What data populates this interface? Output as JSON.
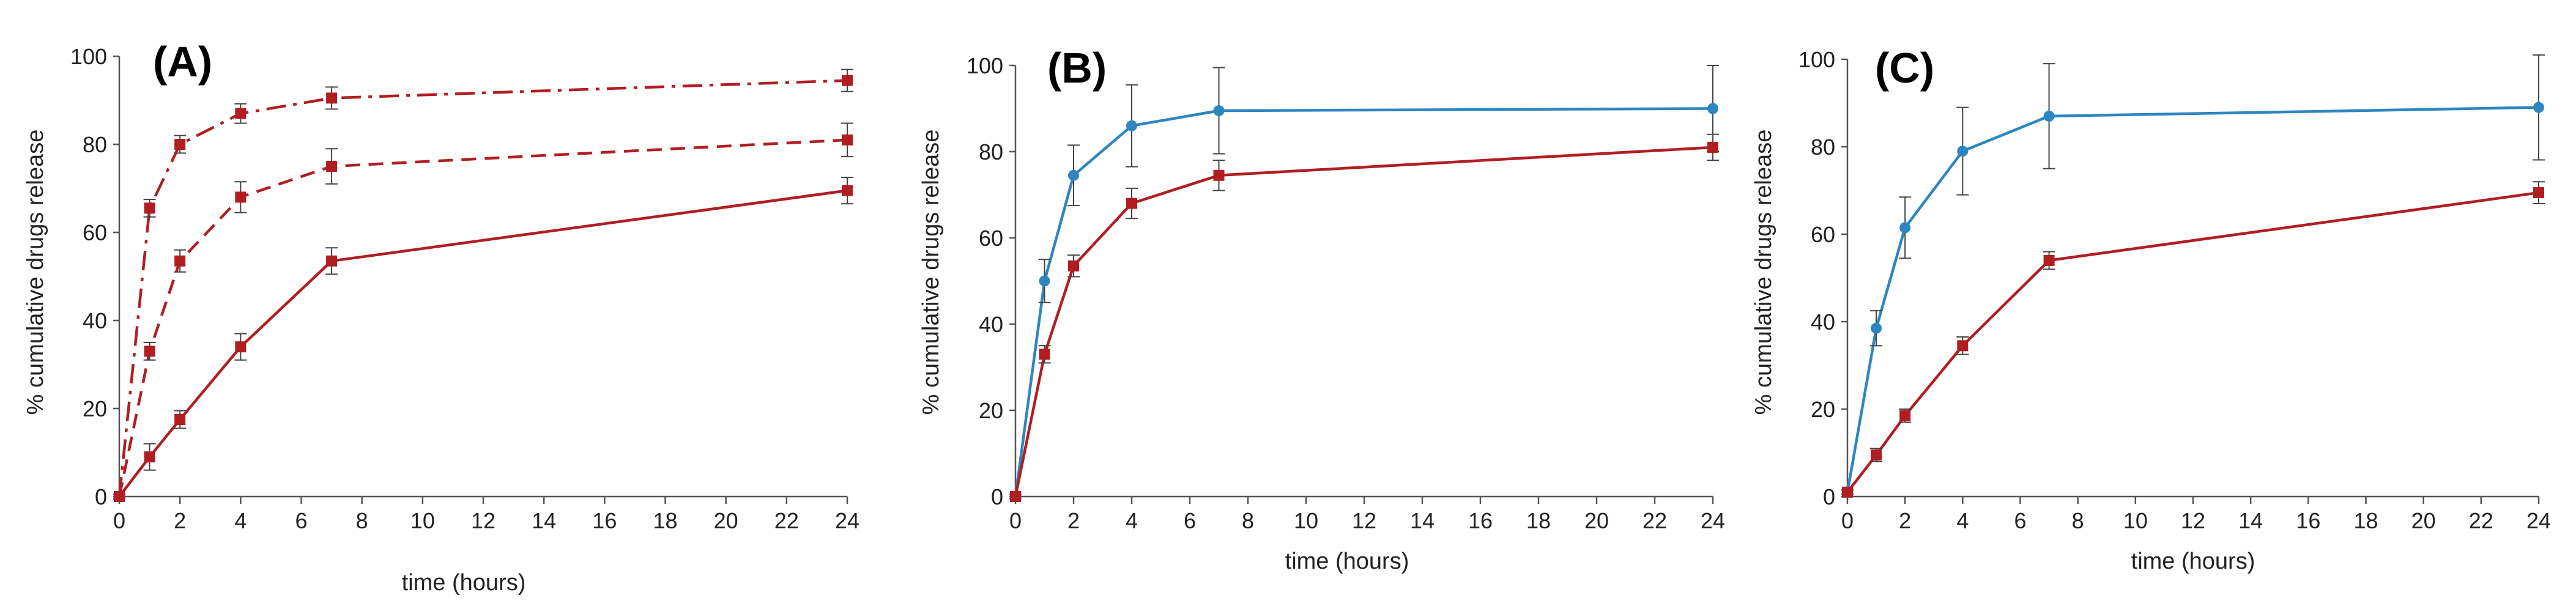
{
  "colors": {
    "red": "#b01e22",
    "blue": "#2e86c1",
    "axis": "#555555",
    "text": "#222222"
  },
  "chart_data": [
    {
      "panel_label": "(A)",
      "type": "line",
      "xlabel": "time (hours)",
      "ylabel": "% cumulative drugs release",
      "xlim": [
        0,
        24
      ],
      "ylim": [
        0,
        100
      ],
      "xticks": [
        0,
        2,
        4,
        6,
        8,
        10,
        12,
        14,
        16,
        18,
        20,
        22,
        24
      ],
      "yticks": [
        0,
        20,
        40,
        60,
        80,
        100
      ],
      "grid": false,
      "series": [
        {
          "name": "dash-dot",
          "color": "red",
          "marker": "square",
          "dash": "dashdot",
          "x": [
            0,
            1,
            2,
            4,
            7,
            24
          ],
          "y": [
            0,
            65.5,
            80,
            87,
            90.5,
            94.5
          ],
          "err": [
            0.5,
            2,
            2,
            2.2,
            2.5,
            2.5
          ]
        },
        {
          "name": "dashed",
          "color": "red",
          "marker": "square",
          "dash": "dashed",
          "x": [
            0,
            1,
            2,
            4,
            7,
            24
          ],
          "y": [
            0,
            33,
            53.5,
            68,
            75,
            81
          ],
          "err": [
            0.5,
            2,
            2.5,
            3.5,
            4,
            3.8
          ]
        },
        {
          "name": "solid",
          "color": "red",
          "marker": "square",
          "dash": "solid",
          "x": [
            0,
            1,
            2,
            4,
            7,
            24
          ],
          "y": [
            0,
            9,
            17.5,
            34,
            53.5,
            69.5
          ],
          "err": [
            0.5,
            3,
            2,
            3,
            3,
            3
          ]
        }
      ]
    },
    {
      "panel_label": "(B)",
      "type": "line",
      "xlabel": "time (hours)",
      "ylabel": "% cumulative drugs release",
      "xlim": [
        0,
        24
      ],
      "ylim": [
        0,
        100
      ],
      "xticks": [
        0,
        2,
        4,
        6,
        8,
        10,
        12,
        14,
        16,
        18,
        20,
        22,
        24
      ],
      "yticks": [
        0,
        20,
        40,
        60,
        80,
        100
      ],
      "grid": false,
      "series": [
        {
          "name": "blue",
          "color": "blue",
          "marker": "circle",
          "dash": "solid",
          "x": [
            0,
            1,
            2,
            4,
            7,
            24
          ],
          "y": [
            0,
            50,
            74.5,
            86,
            89.5,
            90
          ],
          "err": [
            0.5,
            5,
            7,
            9.5,
            10,
            10
          ]
        },
        {
          "name": "red",
          "color": "red",
          "marker": "square",
          "dash": "solid",
          "x": [
            0,
            1,
            2,
            4,
            7,
            24
          ],
          "y": [
            0,
            33,
            53.5,
            68,
            74.5,
            81
          ],
          "err": [
            0.5,
            2,
            2.5,
            3.5,
            3.5,
            3
          ]
        }
      ]
    },
    {
      "panel_label": "(C)",
      "type": "line",
      "xlabel": "time (hours)",
      "ylabel": "% cumulative drugs release",
      "xlim": [
        0,
        24
      ],
      "ylim": [
        0,
        100
      ],
      "xticks": [
        0,
        2,
        4,
        6,
        8,
        10,
        12,
        14,
        16,
        18,
        20,
        22,
        24
      ],
      "yticks": [
        0,
        20,
        40,
        60,
        80,
        100
      ],
      "grid": false,
      "series": [
        {
          "name": "blue",
          "color": "blue",
          "marker": "circle",
          "dash": "solid",
          "x": [
            0,
            1,
            2,
            4,
            7,
            24
          ],
          "y": [
            1,
            38.5,
            61.5,
            79,
            87,
            89
          ],
          "err": [
            0.5,
            4,
            7,
            10,
            12,
            12
          ]
        },
        {
          "name": "red",
          "color": "red",
          "marker": "square",
          "dash": "solid",
          "x": [
            0,
            1,
            2,
            4,
            7,
            24
          ],
          "y": [
            1,
            9.5,
            18.5,
            34.5,
            54,
            69.5
          ],
          "err": [
            0.5,
            1.5,
            1.5,
            2,
            2,
            2.5
          ]
        }
      ]
    }
  ]
}
